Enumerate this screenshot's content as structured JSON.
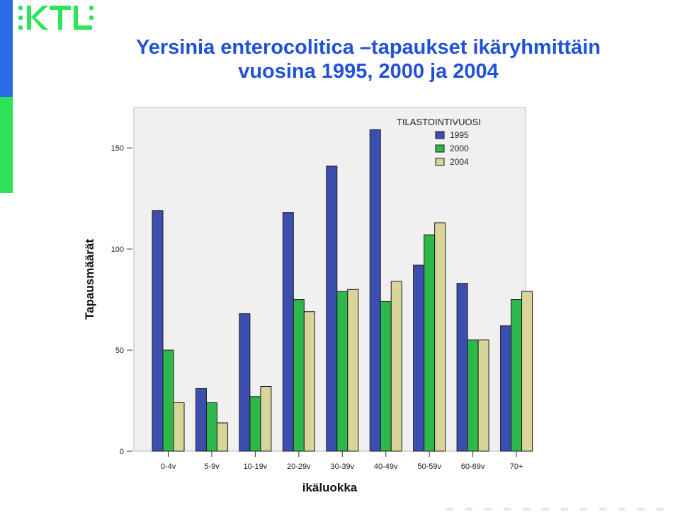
{
  "logo": {
    "text": "KTL",
    "icon": "ktl-logo"
  },
  "title": {
    "line1": "Yersinia enterocolitica –tapaukset ikäryhmittäin",
    "line2": "vuosina 1995, 2000 ja 2004"
  },
  "colors": {
    "title": "#2152d6",
    "sidebar_top": "#2b6be6",
    "sidebar_bottom": "#2ee35a",
    "logo": "#2ee35a"
  },
  "chart_data": {
    "type": "bar",
    "title": "",
    "xlabel": "ikäluokka",
    "ylabel": "Tapausmäärät",
    "ylim": [
      0,
      170
    ],
    "yticks": [
      0,
      50,
      100,
      150
    ],
    "grid": false,
    "legend_title": "TILASTOINTIVUOSI",
    "legend_position": "top-right",
    "categories": [
      "0-4v",
      "5-9v",
      "10-19v",
      "20-29v",
      "30-39v",
      "40-49v",
      "50-59v",
      "60-69v",
      "70+"
    ],
    "series": [
      {
        "name": "1995",
        "color": "#3c4fb0",
        "values": [
          119,
          31,
          68,
          118,
          141,
          159,
          92,
          83,
          62
        ]
      },
      {
        "name": "2000",
        "color": "#2db84a",
        "values": [
          50,
          24,
          27,
          75,
          79,
          74,
          107,
          55,
          75
        ]
      },
      {
        "name": "2004",
        "color": "#d8d49a",
        "values": [
          24,
          14,
          32,
          69,
          80,
          84,
          113,
          55,
          79
        ]
      }
    ]
  }
}
